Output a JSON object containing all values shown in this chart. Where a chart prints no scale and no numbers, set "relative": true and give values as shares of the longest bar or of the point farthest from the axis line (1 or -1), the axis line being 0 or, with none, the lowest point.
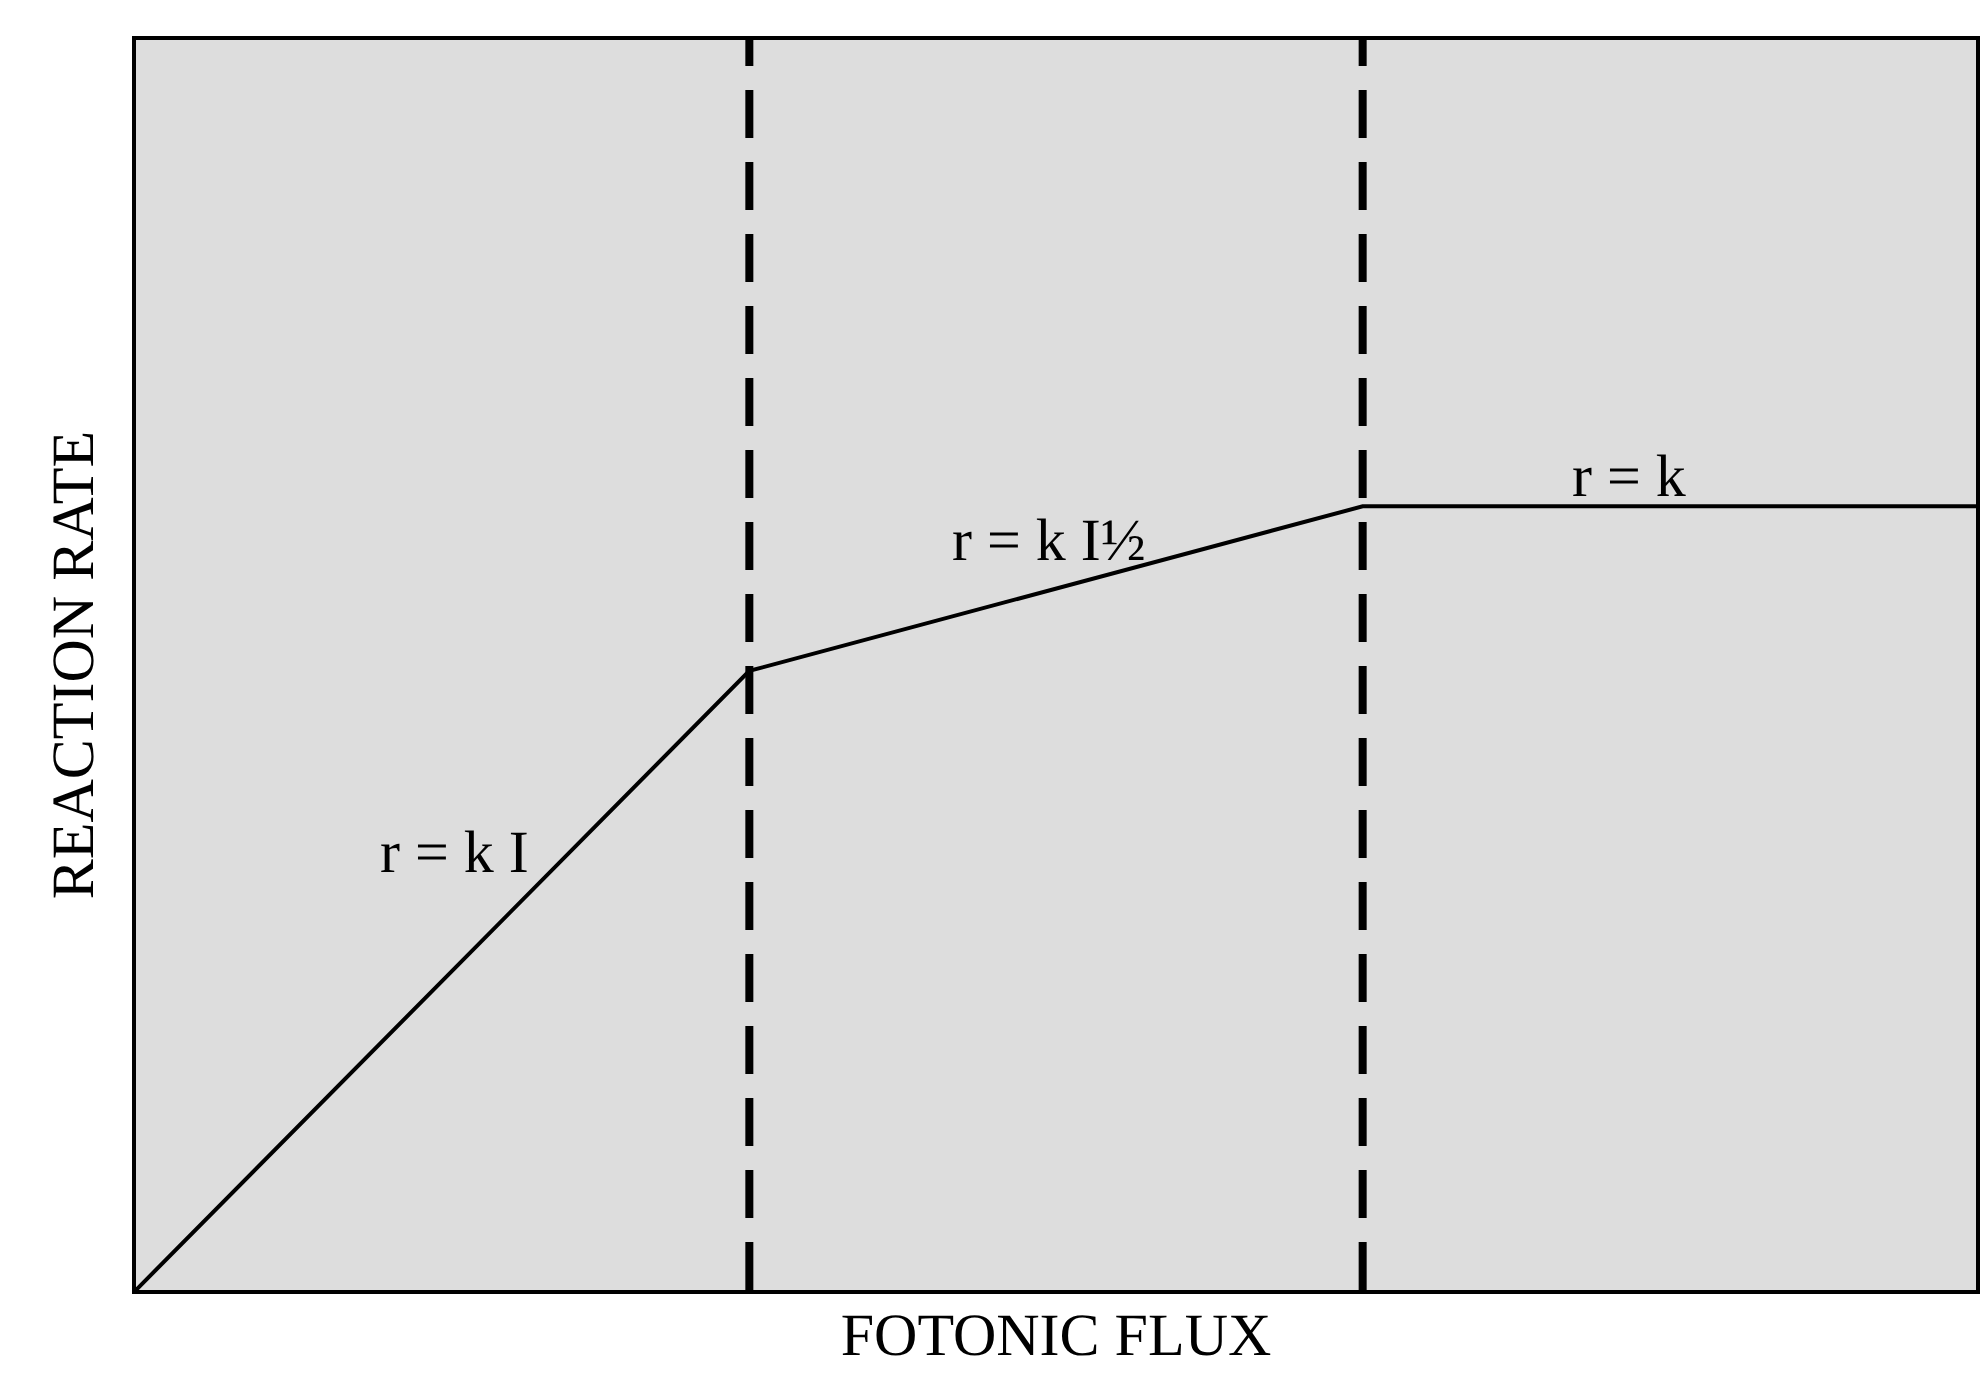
{
  "chart_data": {
    "type": "line",
    "xlabel": "FOTONIC FLUX",
    "ylabel": "REACTION RATE",
    "categories": [
      null,
      null,
      null,
      null
    ],
    "series": [
      {
        "color": "#000000",
        "values": [
          0,
          0.79,
          1,
          1
        ]
      }
    ],
    "relative": true,
    "marker": "none",
    "line_style": "solid",
    "grid": false,
    "annotations": [
      "r = k I",
      "r = k I½",
      "r = k"
    ]
  }
}
